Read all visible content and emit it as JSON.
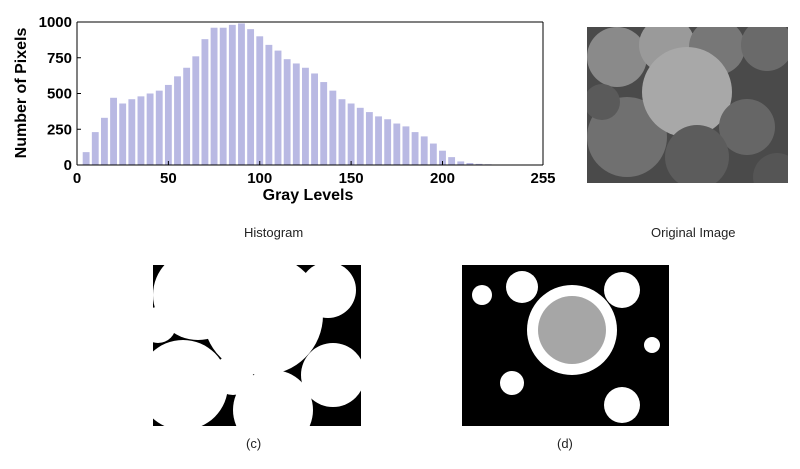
{
  "captions": {
    "histogram": "Histogram",
    "original": "Original Image",
    "c": "(c)",
    "d": "(d)"
  },
  "chart_data": {
    "type": "bar",
    "title": "",
    "xlabel": "Gray Levels",
    "ylabel": "Number of Pixels",
    "xlim": [
      0,
      255
    ],
    "ylim": [
      0,
      1000
    ],
    "xticks": [
      0,
      50,
      100,
      150,
      200,
      255
    ],
    "yticks": [
      0,
      250,
      500,
      750,
      1000
    ],
    "bar_color": "#b9b9e3",
    "grid": false,
    "x": [
      5,
      10,
      15,
      20,
      25,
      30,
      35,
      40,
      45,
      50,
      55,
      60,
      65,
      70,
      75,
      80,
      85,
      90,
      95,
      100,
      105,
      110,
      115,
      120,
      125,
      130,
      135,
      140,
      145,
      150,
      155,
      160,
      165,
      170,
      175,
      180,
      185,
      190,
      195,
      200,
      205,
      210,
      215,
      220,
      225,
      230,
      235,
      240,
      245
    ],
    "values": [
      90,
      230,
      330,
      470,
      430,
      460,
      480,
      500,
      520,
      560,
      620,
      680,
      760,
      880,
      960,
      960,
      980,
      990,
      950,
      900,
      840,
      800,
      740,
      710,
      680,
      640,
      580,
      520,
      460,
      430,
      400,
      370,
      340,
      320,
      290,
      270,
      230,
      200,
      150,
      100,
      55,
      25,
      14,
      8,
      5,
      3,
      2,
      2,
      1
    ]
  },
  "images": {
    "original": {
      "description_icon": "plums-grayscale-photo"
    },
    "c": {
      "description_icon": "thresholded-binary-image"
    },
    "d": {
      "description_icon": "thresholded-binary-image-inverse"
    }
  }
}
